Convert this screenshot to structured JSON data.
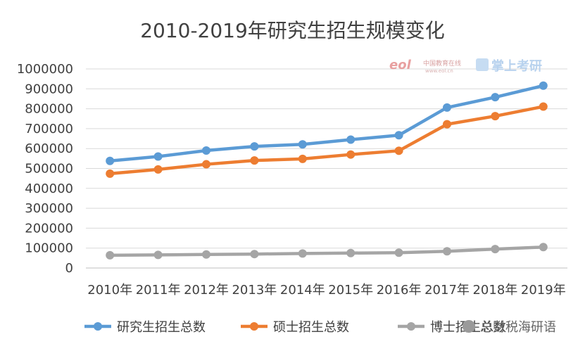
{
  "chart_data": {
    "type": "line",
    "title": "2010-2019年研究生招生规模变化",
    "categories": [
      "2010年",
      "2011年",
      "2012年",
      "2013年",
      "2014年",
      "2015年",
      "2016年",
      "2017年",
      "2018年",
      "2019年"
    ],
    "series": [
      {
        "name": "研究生招生总数",
        "color": "#5B9BD5",
        "values": [
          538000,
          560000,
          590000,
          611000,
          621000,
          645000,
          667000,
          806000,
          858000,
          916000
        ]
      },
      {
        "name": "硕士招生总数",
        "color": "#ED7D31",
        "values": [
          474000,
          495000,
          521000,
          540000,
          548000,
          570000,
          589000,
          722000,
          763000,
          811000
        ]
      },
      {
        "name": "博士招生总数",
        "color": "#A5A5A5",
        "values": [
          64000,
          66000,
          68000,
          70000,
          73000,
          75000,
          77000,
          84000,
          95000,
          105000
        ]
      }
    ],
    "yticks": [
      "0",
      "100000",
      "200000",
      "300000",
      "400000",
      "500000",
      "600000",
      "700000",
      "800000",
      "900000",
      "1000000"
    ],
    "ylim": [
      0,
      1000000
    ],
    "grid": true,
    "legend_position": "bottom"
  },
  "watermarks": {
    "eol_logo": "eol",
    "eol_site": "中国教育在线",
    "eol_url": "www.eol.cn",
    "kaoyan_logo": "掌上考研",
    "wechat": "总财税海研语"
  }
}
